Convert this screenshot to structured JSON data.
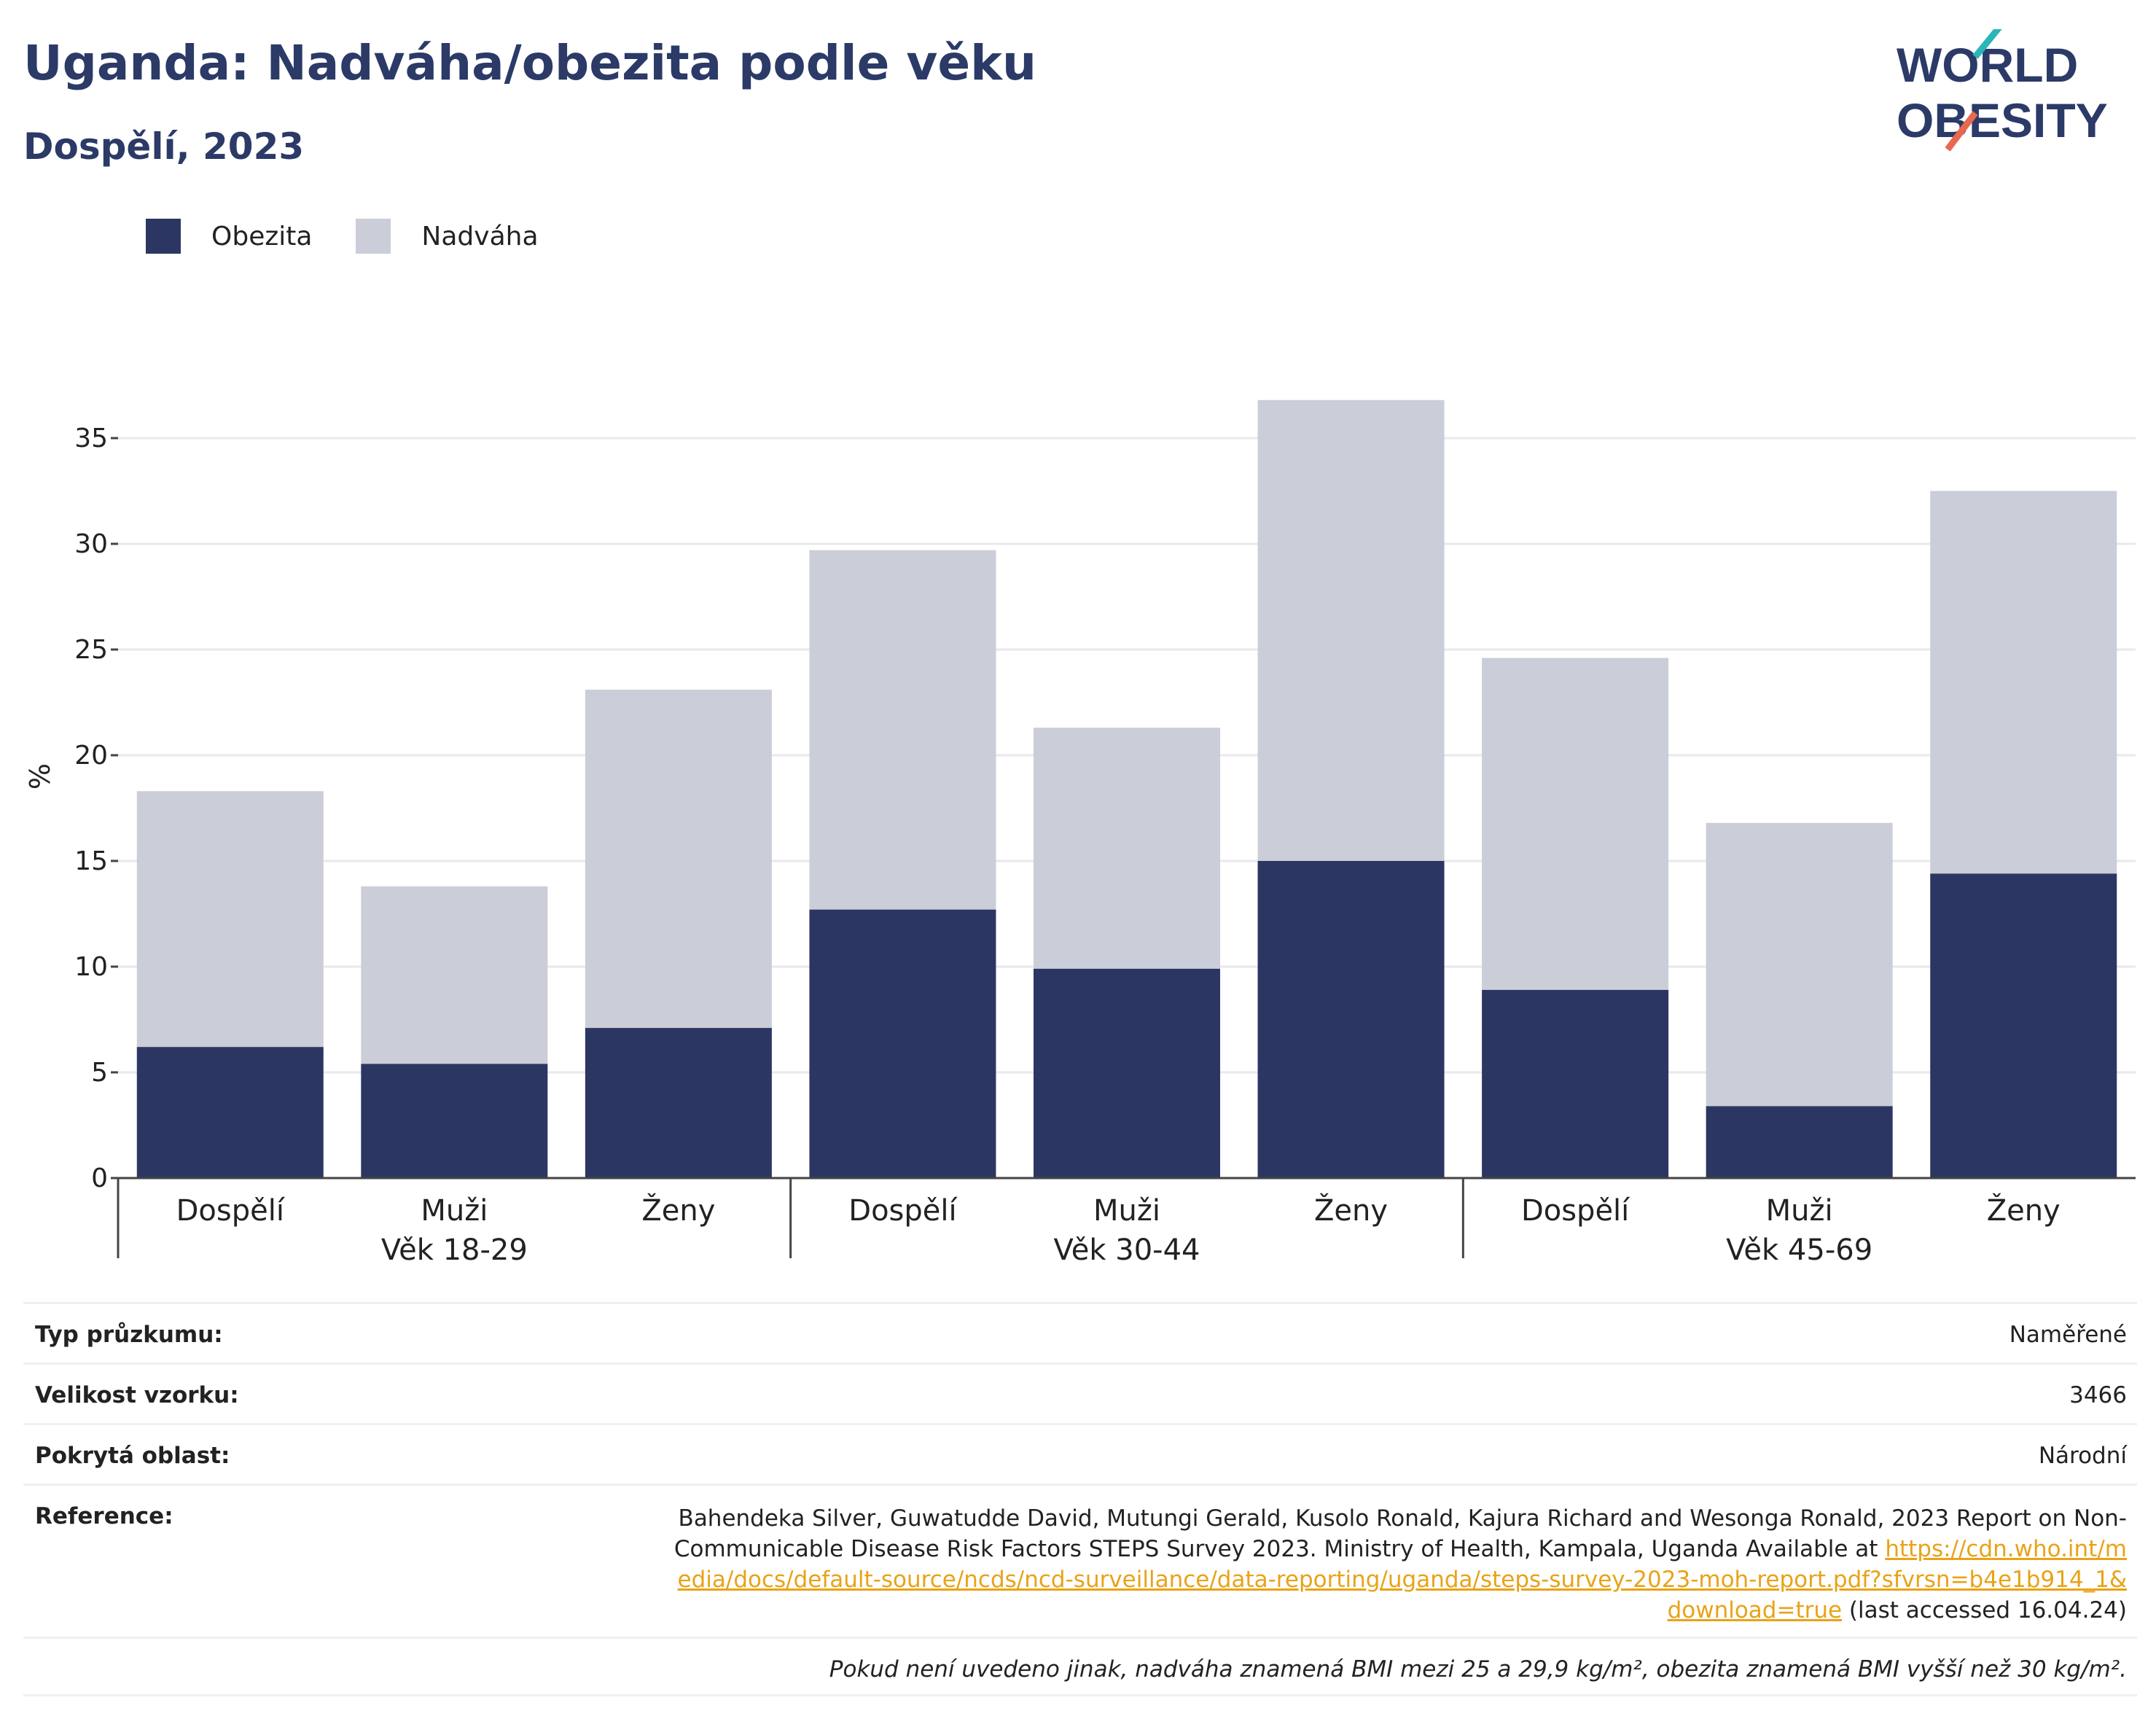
{
  "header": {
    "title": "Uganda: Nadváha/obezita podle věku",
    "subtitle": "Dospělí, 2023"
  },
  "logo": {
    "line1": "WORLD",
    "line2": "OBESITY",
    "accent_colors": [
      "#2bb5b8",
      "#e8694f"
    ]
  },
  "colors": {
    "obesity": "#2b3663",
    "overweight": "#cbcdd8",
    "axis": "#444444",
    "grid": "#e8e8ee",
    "link": "#e8a317"
  },
  "chart_data": {
    "type": "bar",
    "stacked": true,
    "ylabel": "%",
    "ylim": [
      0,
      38
    ],
    "yticks": [
      0,
      5,
      10,
      15,
      20,
      25,
      30,
      35
    ],
    "grid": true,
    "legend": "top-left",
    "categories": [
      "Dospělí",
      "Muži",
      "Ženy",
      "Dospělí",
      "Muži",
      "Ženy",
      "Dospělí",
      "Muži",
      "Ženy"
    ],
    "groups": [
      "Věk 18-29",
      "Věk 30-44",
      "Věk 45-69"
    ],
    "series": [
      {
        "name": "Obezita",
        "values": [
          6.2,
          5.4,
          7.1,
          12.7,
          9.9,
          15.0,
          8.9,
          3.4,
          14.4
        ]
      },
      {
        "name": "Nadváha",
        "values": [
          12.1,
          8.4,
          16.0,
          17.0,
          11.4,
          21.8,
          15.7,
          13.4,
          18.1
        ]
      }
    ]
  },
  "info": {
    "survey_type_label": "Typ průzkumu:",
    "survey_type_value": "Naměřené",
    "sample_size_label": "Velikost vzorku:",
    "sample_size_value": "3466",
    "area_label": "Pokrytá oblast:",
    "area_value": "Národní",
    "reference_label": "Reference:",
    "reference_text": "Bahendeka Silver, Guwatudde David, Mutungi Gerald, Kusolo Ronald, Kajura Richard and Wesonga Ronald, 2023 Report on Non-Communicable Disease Risk Factors STEPS Survey 2023. Ministry of Health, Kampala, Uganda Available at",
    "reference_link": "https://cdn.who.int/media/docs/default-source/ncds/ncd-surveillance/data-reporting/uganda/steps-survey-2023-moh-report.pdf?sfvrsn=b4e1b914_1&download=true",
    "reference_suffix": " (last accessed 16.04.24)",
    "note": "Pokud není uvedeno jinak, nadváha znamená BMI mezi 25 a 29,9 kg/m², obezita znamená BMI vyšší než 30 kg/m²."
  }
}
